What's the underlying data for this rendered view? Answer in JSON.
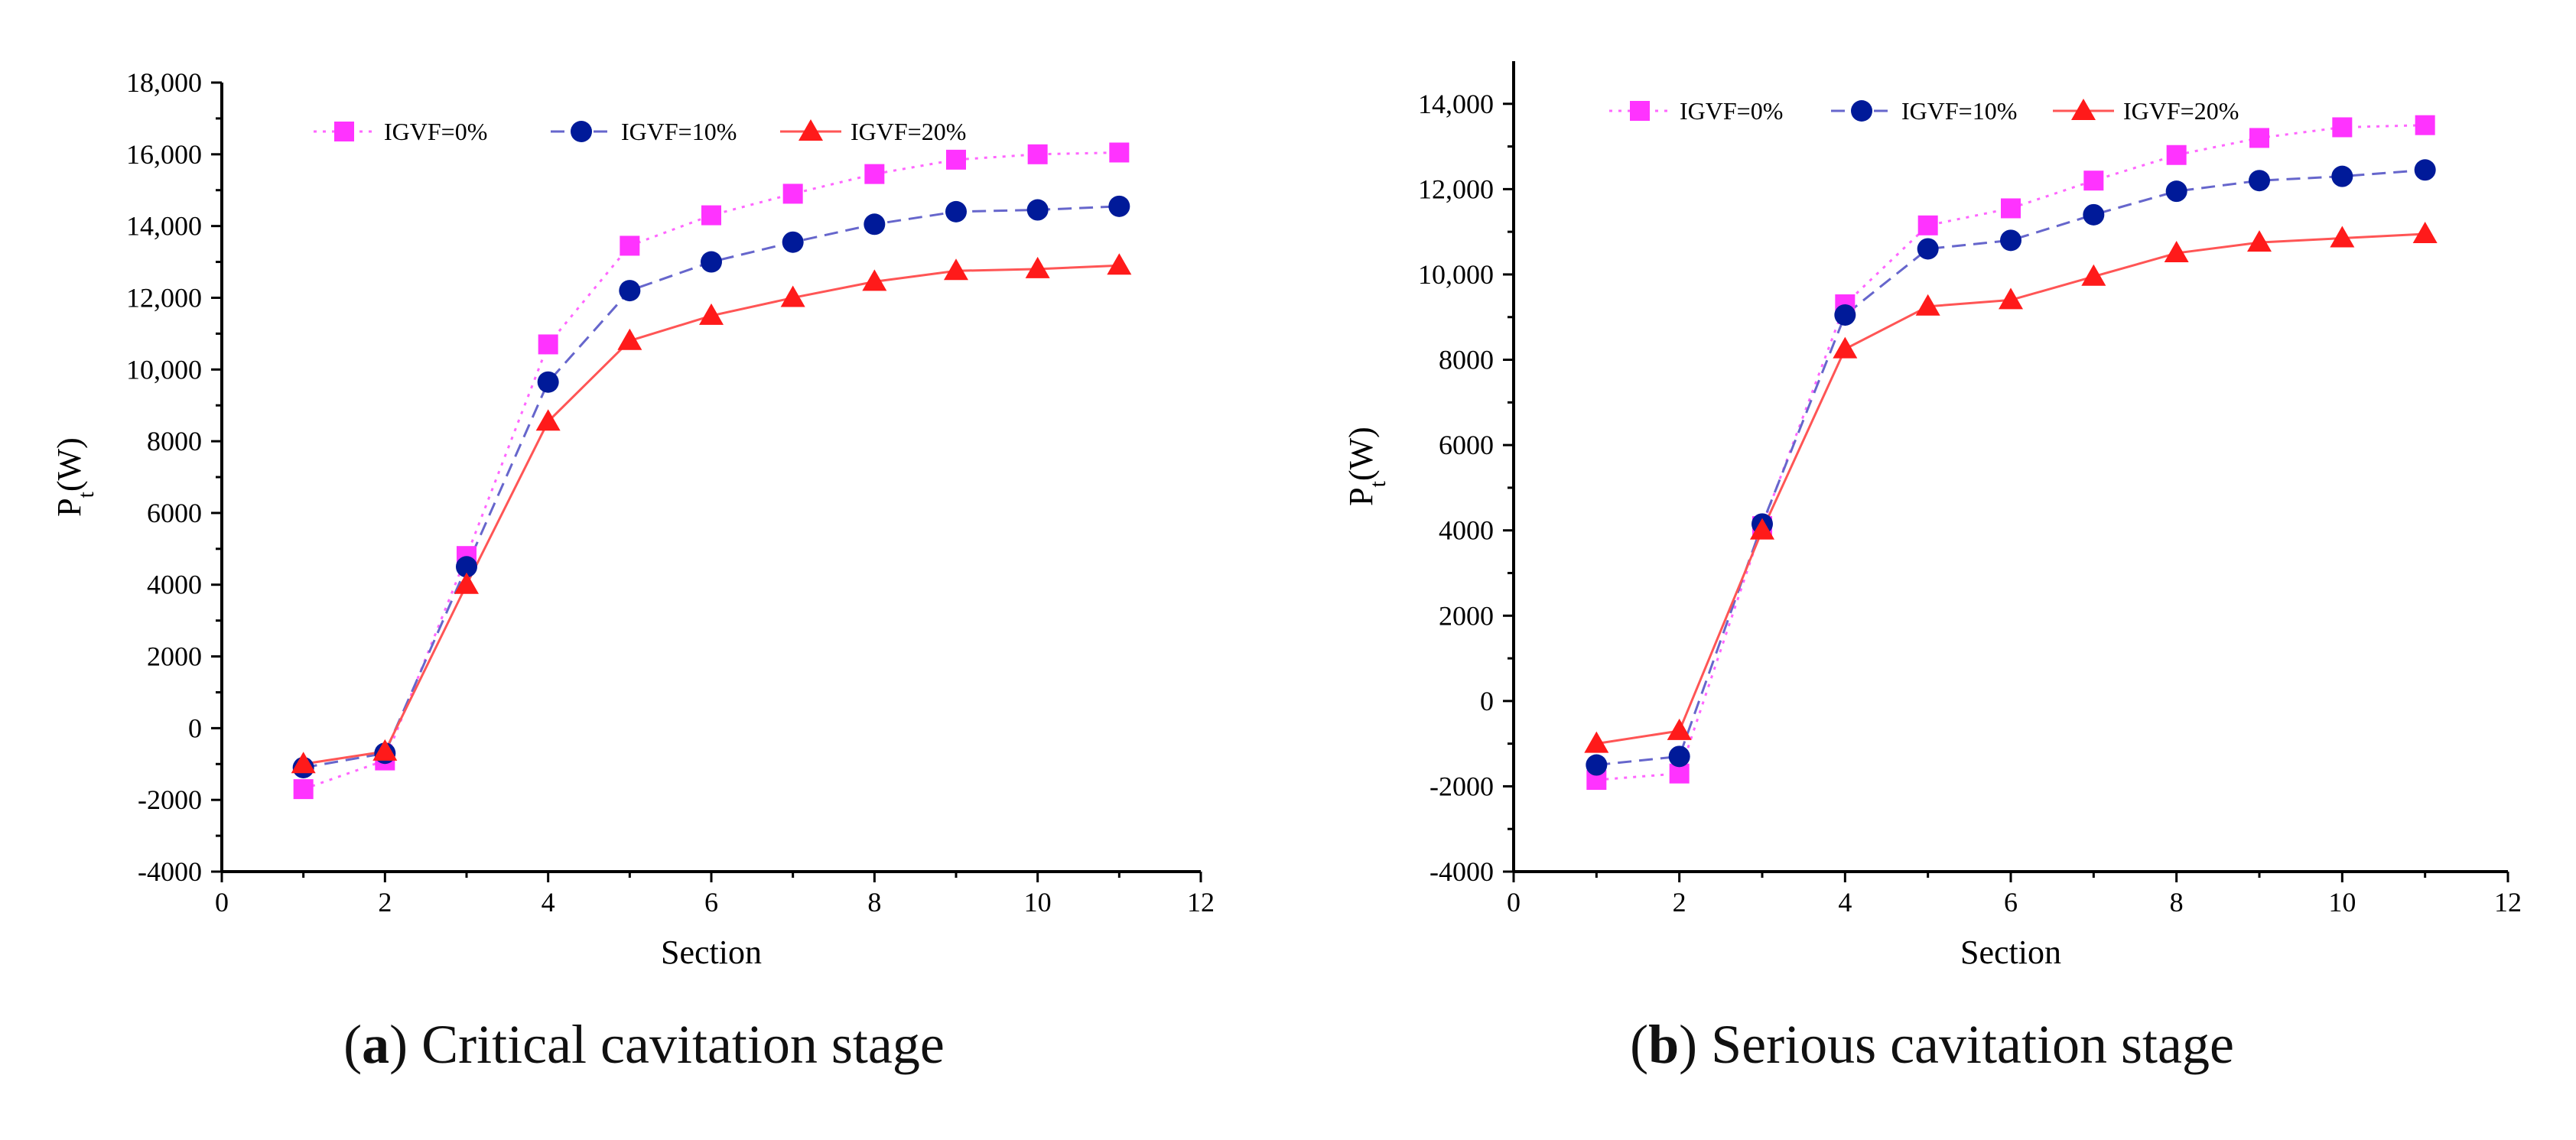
{
  "colors": {
    "igvf0": "#FF33FF",
    "igvf10": "#001A99",
    "igvf20": "#FF1A1A",
    "line0": "#FF66FF",
    "line10": "#6666CC",
    "line20": "#FF5555"
  },
  "chart_data": [
    {
      "type": "line",
      "panel_letter": "a",
      "caption": "Critical cavitation stage",
      "xlabel": "Section",
      "ylabel_main": "P",
      "ylabel_sub": "t",
      "ylabel_unit": "(W)",
      "xlim": [
        0,
        12
      ],
      "ylim": [
        -4000,
        18000
      ],
      "xticks": [
        0,
        2,
        4,
        6,
        8,
        10,
        12
      ],
      "xtick_labels": [
        "0",
        "2",
        "4",
        "6",
        "8",
        "10",
        "12"
      ],
      "yticks": [
        -4000,
        -2000,
        0,
        2000,
        4000,
        6000,
        8000,
        10000,
        12000,
        14000,
        16000,
        18000
      ],
      "ytick_labels": [
        "-4000",
        "-2000",
        "0",
        "2000",
        "4000",
        "6000",
        "8000",
        "10,000",
        "12,000",
        "14,000",
        "16,000",
        "18,000"
      ],
      "x": [
        1,
        2,
        3,
        4,
        5,
        6,
        7,
        8,
        9,
        10,
        11
      ],
      "series": [
        {
          "name": "IGVF=0%",
          "marker": "square",
          "dash": "dotted",
          "values": [
            -1700,
            -900,
            4800,
            10700,
            13450,
            14300,
            14900,
            15450,
            15850,
            16000,
            16050
          ]
        },
        {
          "name": "IGVF=10%",
          "marker": "circle",
          "dash": "dashed",
          "values": [
            -1100,
            -700,
            4500,
            9650,
            12200,
            13000,
            13550,
            14050,
            14400,
            14450,
            14550
          ]
        },
        {
          "name": "IGVF=20%",
          "marker": "triangle",
          "dash": "solid",
          "values": [
            -1000,
            -650,
            4000,
            8550,
            10800,
            11500,
            12000,
            12450,
            12750,
            12800,
            12900
          ]
        }
      ]
    },
    {
      "type": "line",
      "panel_letter": "b",
      "caption": "Serious cavitation stage",
      "xlabel": "Section",
      "ylabel_main": "P",
      "ylabel_sub": "t",
      "ylabel_unit": "(W)",
      "xlim": [
        0,
        12
      ],
      "ylim": [
        -4000,
        15000
      ],
      "xticks": [
        0,
        2,
        4,
        6,
        8,
        10,
        12
      ],
      "xtick_labels": [
        "0",
        "2",
        "4",
        "6",
        "8",
        "10",
        "12"
      ],
      "yticks": [
        -4000,
        -2000,
        0,
        2000,
        4000,
        6000,
        8000,
        10000,
        12000,
        14000
      ],
      "ytick_labels": [
        "-4000",
        "-2000",
        "0",
        "2000",
        "4000",
        "6000",
        "8000",
        "10,000",
        "12,000",
        "14,000"
      ],
      "x": [
        1,
        2,
        3,
        4,
        5,
        6,
        7,
        8,
        9,
        10,
        11
      ],
      "series": [
        {
          "name": "IGVF=0%",
          "marker": "square",
          "dash": "dotted",
          "values": [
            -1850,
            -1700,
            4100,
            9300,
            11150,
            11550,
            12200,
            12800,
            13200,
            13450,
            13500
          ]
        },
        {
          "name": "IGVF=10%",
          "marker": "circle",
          "dash": "dashed",
          "values": [
            -1500,
            -1300,
            4150,
            9050,
            10600,
            10800,
            11400,
            11950,
            12200,
            12300,
            12450
          ]
        },
        {
          "name": "IGVF=20%",
          "marker": "triangle",
          "dash": "solid",
          "values": [
            -1000,
            -700,
            4000,
            8250,
            9250,
            9400,
            9950,
            10500,
            10750,
            10850,
            10950
          ]
        }
      ]
    }
  ]
}
